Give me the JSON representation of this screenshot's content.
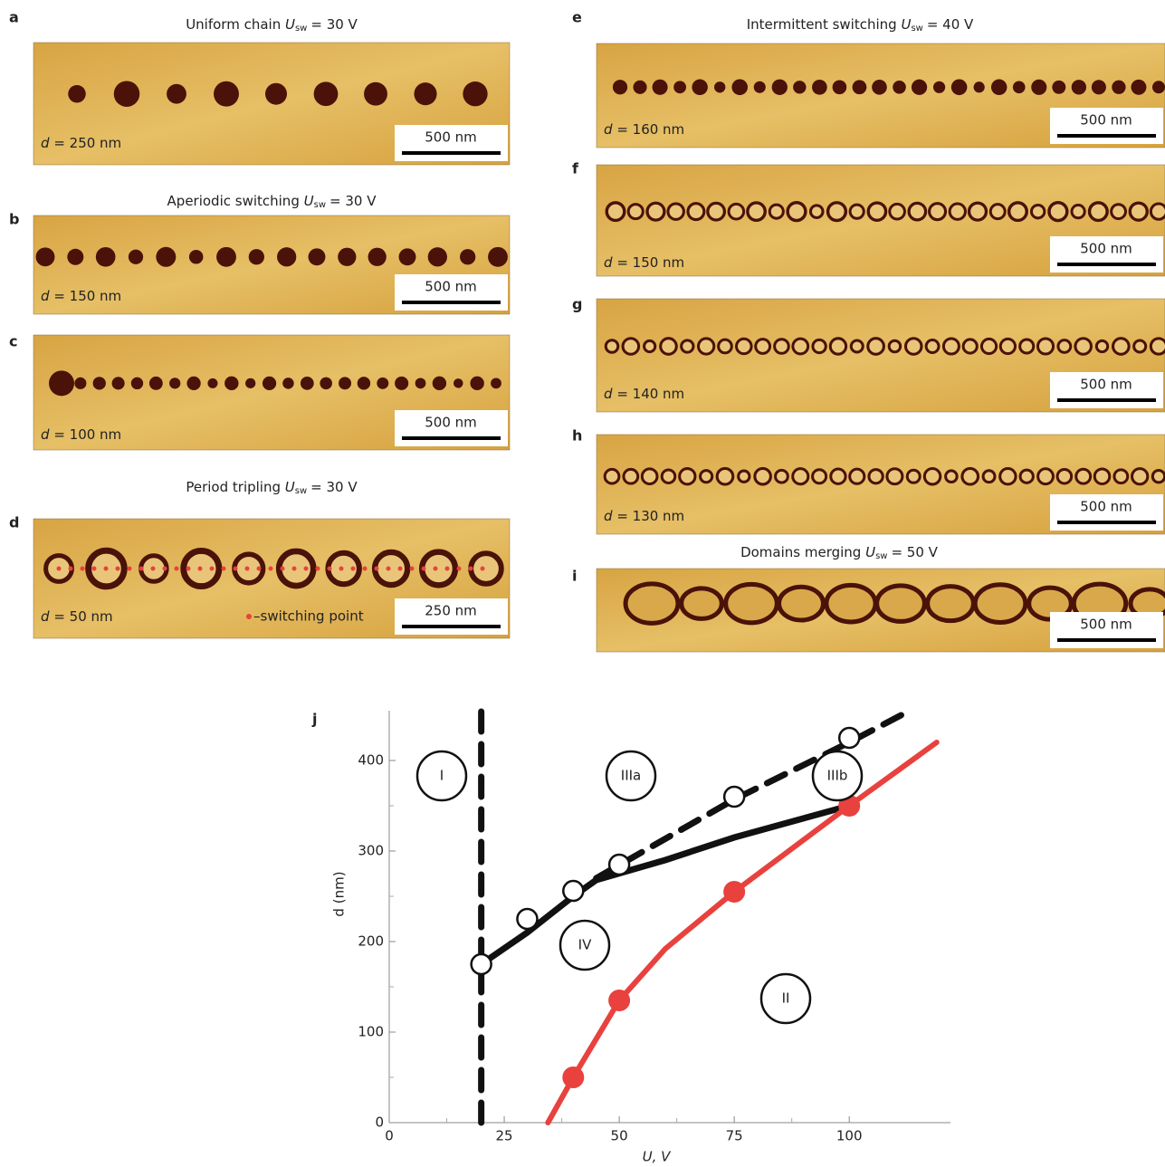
{
  "panels": [
    {
      "letter": "a",
      "title": {
        "text": "Uniform chain",
        "symbol": "U",
        "sub": "sw",
        "rest": "= 30 V"
      },
      "d_label": {
        "symbol": "d",
        "rest": "= 250 nm"
      },
      "scale_bar": "500 nm"
    },
    {
      "letter": "b",
      "title": {
        "text": "Aperiodic switching",
        "symbol": "U",
        "sub": "sw",
        "rest": "= 30 V"
      },
      "d_label": {
        "symbol": "d",
        "rest": "= 150 nm"
      },
      "scale_bar": "500 nm"
    },
    {
      "letter": "c",
      "d_label": {
        "symbol": "d",
        "rest": "= 100 nm"
      },
      "scale_bar": "500 nm"
    },
    {
      "letter": "d",
      "title": {
        "text": "Period tripling",
        "symbol": "U",
        "sub": "sw",
        "rest": "= 30 V"
      },
      "d_label": {
        "symbol": "d",
        "rest": "= 50 nm"
      },
      "scale_bar": "250 nm",
      "legend": "–switching point"
    },
    {
      "letter": "e",
      "title": {
        "text": "Intermittent switching",
        "symbol": "U",
        "sub": "sw",
        "rest": "= 40 V"
      },
      "d_label": {
        "symbol": "d",
        "rest": "= 160 nm"
      },
      "scale_bar": "500 nm"
    },
    {
      "letter": "f",
      "d_label": {
        "symbol": "d",
        "rest": "= 150 nm"
      },
      "scale_bar": "500 nm"
    },
    {
      "letter": "g",
      "d_label": {
        "symbol": "d",
        "rest": "= 140 nm"
      },
      "scale_bar": "500 nm"
    },
    {
      "letter": "h",
      "d_label": {
        "symbol": "d",
        "rest": "= 130 nm"
      },
      "scale_bar": "500 nm"
    },
    {
      "letter": "i",
      "title": {
        "text": "Domains merging",
        "symbol": "U",
        "sub": "sw",
        "rest": "= 50 V"
      },
      "scale_bar": "500 nm"
    }
  ],
  "chart_data": {
    "type": "line",
    "letter": "j",
    "x_label": "U, V",
    "y_label": "d (nm)",
    "xlim": [
      0,
      122
    ],
    "ylim": [
      0,
      455
    ],
    "xticks": [
      0,
      25,
      50,
      75,
      100
    ],
    "yticks": [
      0,
      100,
      200,
      300,
      400
    ],
    "annotations": [
      "I",
      "IIIa",
      "IIIb",
      "IV",
      "II"
    ],
    "series": [
      {
        "color": "#111111",
        "style": "dashed",
        "marker": "none",
        "x": [
          20,
          20
        ],
        "values": [
          0,
          455
        ]
      },
      {
        "color": "#111111",
        "style": "solid",
        "marker": "none",
        "x": [
          20,
          30,
          40,
          45,
          60,
          75,
          100
        ],
        "values": [
          175,
          210,
          250,
          268,
          290,
          315,
          350
        ]
      },
      {
        "color": "#111111",
        "style": "dashed",
        "marker": "none",
        "x": [
          45,
          75,
          100,
          112
        ],
        "values": [
          270,
          357,
          420,
          452
        ]
      },
      {
        "color": "#e8413e",
        "style": "solid",
        "marker": "none",
        "x": [
          34.5,
          40,
          50,
          60,
          75,
          100,
          119
        ],
        "values": [
          0,
          50,
          135,
          192,
          255,
          350,
          420
        ]
      },
      {
        "color": "#e8413e",
        "style": "none",
        "marker": "filled",
        "x": [
          40,
          50,
          75,
          100
        ],
        "values": [
          50,
          135,
          255,
          350
        ]
      },
      {
        "color": "#111111",
        "style": "none",
        "marker": "open",
        "x": [
          20,
          30,
          40,
          50,
          75,
          100
        ],
        "values": [
          175,
          225,
          256,
          285,
          360,
          425
        ]
      }
    ]
  }
}
